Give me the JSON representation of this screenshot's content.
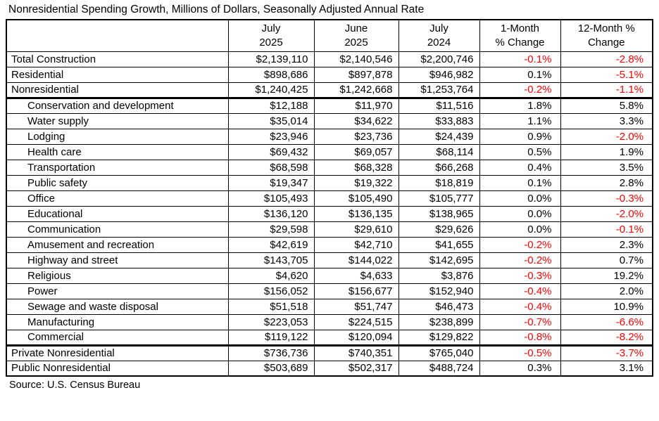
{
  "title": "Nonresidential Spending Growth, Millions of Dollars, Seasonally Adjusted Annual Rate",
  "source": "Source: U.S. Census Bureau",
  "colors": {
    "negative_value": "#FF0000",
    "positive_value": "#000000",
    "border": "#000000",
    "background": "#FFFFFF"
  },
  "chart_data": {
    "type": "table",
    "title": "Nonresidential Spending Growth, Millions of Dollars, Seasonally Adjusted Annual Rate",
    "units": "Millions of Dollars, Seasonally Adjusted Annual Rate",
    "source": "Source: U.S. Census Bureau",
    "negative_color": "#FF0000",
    "columns": [
      {
        "line1": "July",
        "line2": "2025"
      },
      {
        "line1": "June",
        "line2": "2025"
      },
      {
        "line1": "July",
        "line2": "2024"
      },
      {
        "line1": "1-Month",
        "line2": "% Change"
      },
      {
        "line1": "12-Month %",
        "line2": "Change"
      }
    ],
    "rows": [
      {
        "label": "Total Construction",
        "level": "top",
        "thick_bottom": false,
        "values": [
          "$2,139,110",
          "$2,140,546",
          "$2,200,746",
          "-0.1%",
          "-2.8%"
        ]
      },
      {
        "label": "Residential",
        "level": "top",
        "thick_bottom": false,
        "values": [
          "$898,686",
          "$897,878",
          "$946,982",
          "0.1%",
          "-5.1%"
        ]
      },
      {
        "label": "Nonresidential",
        "level": "top",
        "thick_bottom": true,
        "values": [
          "$1,240,425",
          "$1,242,668",
          "$1,253,764",
          "-0.2%",
          "-1.1%"
        ]
      },
      {
        "label": "Conservation and development",
        "level": "sub",
        "thick_bottom": false,
        "values": [
          "$12,188",
          "$11,970",
          "$11,516",
          "1.8%",
          "5.8%"
        ]
      },
      {
        "label": "Water supply",
        "level": "sub",
        "thick_bottom": false,
        "values": [
          "$35,014",
          "$34,622",
          "$33,883",
          "1.1%",
          "3.3%"
        ]
      },
      {
        "label": "Lodging",
        "level": "sub",
        "thick_bottom": false,
        "values": [
          "$23,946",
          "$23,736",
          "$24,439",
          "0.9%",
          "-2.0%"
        ]
      },
      {
        "label": "Health care",
        "level": "sub",
        "thick_bottom": false,
        "values": [
          "$69,432",
          "$69,057",
          "$68,114",
          "0.5%",
          "1.9%"
        ]
      },
      {
        "label": "Transportation",
        "level": "sub",
        "thick_bottom": false,
        "values": [
          "$68,598",
          "$68,328",
          "$66,268",
          "0.4%",
          "3.5%"
        ]
      },
      {
        "label": "Public safety",
        "level": "sub",
        "thick_bottom": false,
        "values": [
          "$19,347",
          "$19,322",
          "$18,819",
          "0.1%",
          "2.8%"
        ]
      },
      {
        "label": "Office",
        "level": "sub",
        "thick_bottom": false,
        "values": [
          "$105,493",
          "$105,490",
          "$105,777",
          "0.0%",
          "-0.3%"
        ]
      },
      {
        "label": "Educational",
        "level": "sub",
        "thick_bottom": false,
        "values": [
          "$136,120",
          "$136,135",
          "$138,965",
          "0.0%",
          "-2.0%"
        ]
      },
      {
        "label": "Communication",
        "level": "sub",
        "thick_bottom": false,
        "values": [
          "$29,598",
          "$29,610",
          "$29,626",
          "0.0%",
          "-0.1%"
        ]
      },
      {
        "label": "Amusement and recreation",
        "level": "sub",
        "thick_bottom": false,
        "values": [
          "$42,619",
          "$42,710",
          "$41,655",
          "-0.2%",
          "2.3%"
        ]
      },
      {
        "label": "Highway and street",
        "level": "sub",
        "thick_bottom": false,
        "values": [
          "$143,705",
          "$144,022",
          "$142,695",
          "-0.2%",
          "0.7%"
        ]
      },
      {
        "label": "Religious",
        "level": "sub",
        "thick_bottom": false,
        "values": [
          "$4,620",
          "$4,633",
          "$3,876",
          "-0.3%",
          "19.2%"
        ]
      },
      {
        "label": "Power",
        "level": "sub",
        "thick_bottom": false,
        "values": [
          "$156,052",
          "$156,677",
          "$152,940",
          "-0.4%",
          "2.0%"
        ]
      },
      {
        "label": "Sewage and waste disposal",
        "level": "sub",
        "thick_bottom": false,
        "values": [
          "$51,518",
          "$51,747",
          "$46,473",
          "-0.4%",
          "10.9%"
        ]
      },
      {
        "label": "Manufacturing",
        "level": "sub",
        "thick_bottom": false,
        "values": [
          "$223,053",
          "$224,515",
          "$238,899",
          "-0.7%",
          "-6.6%"
        ]
      },
      {
        "label": "Commercial",
        "level": "sub",
        "thick_bottom": true,
        "values": [
          "$119,122",
          "$120,094",
          "$129,822",
          "-0.8%",
          "-8.2%"
        ]
      },
      {
        "label": "Private Nonresidential",
        "level": "top",
        "thick_bottom": false,
        "values": [
          "$736,736",
          "$740,351",
          "$765,040",
          "-0.5%",
          "-3.7%"
        ]
      },
      {
        "label": "Public Nonresidential",
        "level": "top",
        "thick_bottom": false,
        "values": [
          "$503,689",
          "$502,317",
          "$488,724",
          "0.3%",
          "3.1%"
        ]
      }
    ]
  }
}
